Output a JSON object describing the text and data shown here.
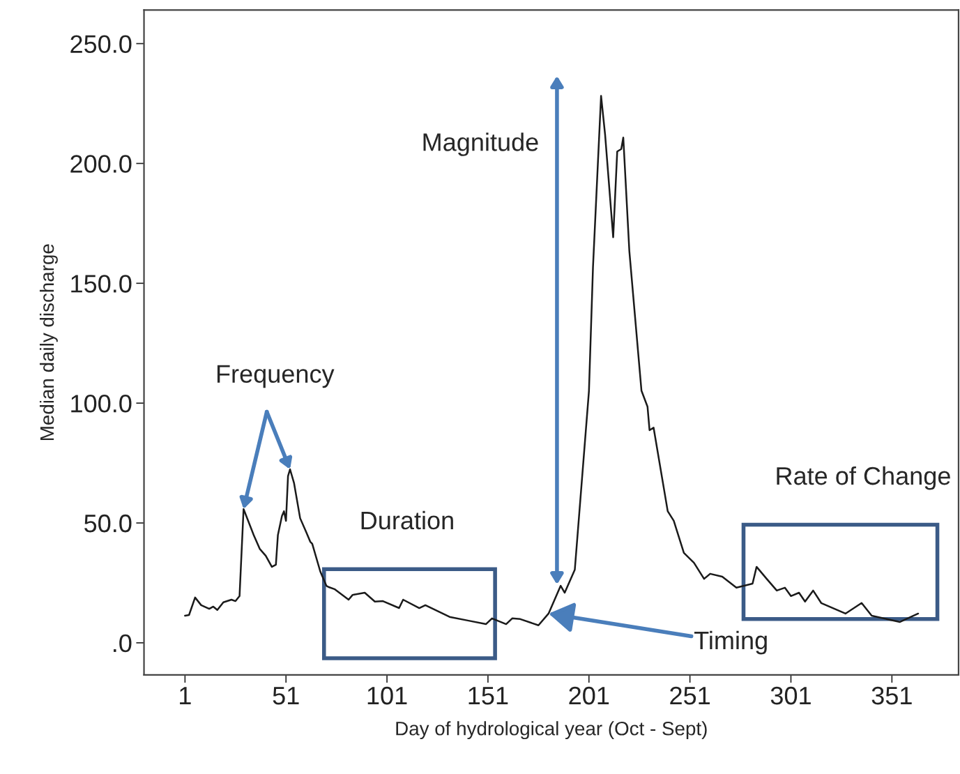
{
  "chart_data": {
    "type": "line",
    "xlabel": "Day of hydrological year (Oct - Sept)",
    "ylabel": "Median daily discharge",
    "series": [
      {
        "color": "#1a1a1a",
        "x": [
          1,
          3,
          6,
          9,
          13,
          15,
          17,
          20,
          24,
          26,
          28,
          30,
          35,
          38,
          41,
          44,
          46,
          47,
          49,
          50,
          51,
          52,
          53,
          55,
          58,
          61,
          63,
          64,
          68,
          71,
          72,
          75,
          82,
          84,
          90,
          95,
          99,
          107,
          109,
          117,
          120,
          132,
          141,
          150,
          153,
          160,
          163,
          167,
          176,
          181,
          187,
          189,
          194,
          201,
          203,
          207,
          209,
          213,
          215,
          217,
          218,
          221,
          227,
          230,
          231,
          233,
          240,
          243,
          248,
          253,
          258,
          261,
          267,
          274,
          282,
          284,
          289,
          294,
          298,
          301,
          305,
          308,
          312,
          316,
          328,
          336,
          341,
          355,
          364
        ],
        "values": [
          11.3,
          11.6,
          18.9,
          15.7,
          14.2,
          15.1,
          13.7,
          16.9,
          18.0,
          17.4,
          19.5,
          55.8,
          45.0,
          39.2,
          36.3,
          31.7,
          32.6,
          45.0,
          52.9,
          54.9,
          50.9,
          69.5,
          72.4,
          66.6,
          52.0,
          46.2,
          42.2,
          41.3,
          29.7,
          23.8,
          23.3,
          22.4,
          18.0,
          20.0,
          20.9,
          17.2,
          17.4,
          14.5,
          18.0,
          14.5,
          15.7,
          10.8,
          9.3,
          7.8,
          10.2,
          7.8,
          10.2,
          9.9,
          7.3,
          12.2,
          23.8,
          20.9,
          30.5,
          105.0,
          156.7,
          228.2,
          212.0,
          169.2,
          205.0,
          206.0,
          210.8,
          163.4,
          105.2,
          98.5,
          88.7,
          89.8,
          54.9,
          50.9,
          37.5,
          33.4,
          26.7,
          28.8,
          27.6,
          23.0,
          24.7,
          31.7,
          26.7,
          21.8,
          23.0,
          19.5,
          20.9,
          17.2,
          21.8,
          16.6,
          12.2,
          16.6,
          11.3,
          8.7,
          12.2
        ]
      }
    ],
    "xlim": [
      -19.3,
      384
    ],
    "ylim": [
      -13.4,
      264
    ],
    "xticks": [
      1,
      51,
      101,
      151,
      201,
      251,
      301,
      351
    ],
    "yticks": [
      {
        "value": 0,
        "label": ".0"
      },
      {
        "value": 50,
        "label": "50.0"
      },
      {
        "value": 100,
        "label": "100.0"
      },
      {
        "value": 150,
        "label": "150.0"
      },
      {
        "value": 200,
        "label": "200.0"
      },
      {
        "value": 250,
        "label": "250.0"
      }
    ],
    "grid": false,
    "legend": false,
    "annotations": [
      {
        "text": "Frequency",
        "x": 30,
        "y": 55.8
      },
      "Magnitude",
      "Duration",
      {
        "text": "Timing",
        "x": 181,
        "y": 12.2
      },
      "Rate of Change"
    ]
  }
}
